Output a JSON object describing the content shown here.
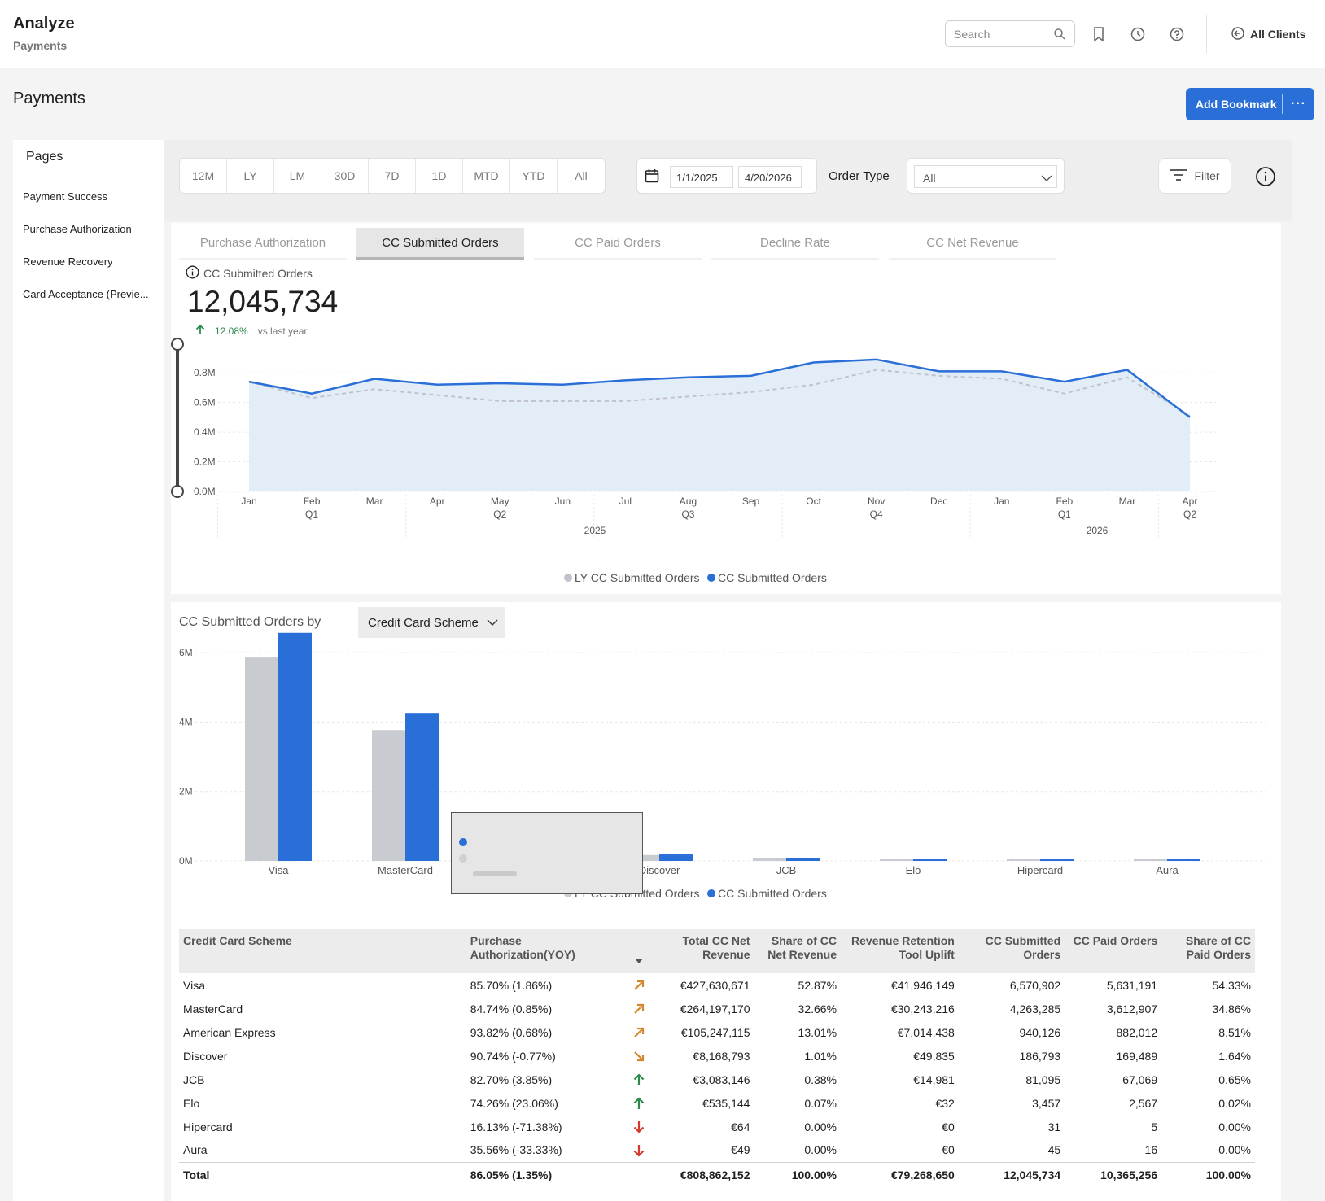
{
  "header": {
    "app_title": "Analyze",
    "app_subtitle": "Payments",
    "search_placeholder": "Search",
    "all_clients_label": "All Clients",
    "icons": [
      "search-icon",
      "bookmark-icon",
      "history-icon",
      "help-icon",
      "client-switch-icon"
    ]
  },
  "page": {
    "title": "Payments",
    "add_bookmark_label": "Add Bookmark",
    "more_label": "···"
  },
  "sidebar": {
    "heading": "Pages",
    "items": [
      {
        "label": "Payment Success"
      },
      {
        "label": "Purchase Authorization"
      },
      {
        "label": "Revenue Recovery"
      },
      {
        "label": "Card Acceptance (Previe..."
      }
    ]
  },
  "toolbar": {
    "periods": [
      "12M",
      "LY",
      "LM",
      "30D",
      "7D",
      "1D",
      "MTD",
      "YTD",
      "All"
    ],
    "start_date": "1/1/2025",
    "end_date": "4/20/2026",
    "order_type_label": "Order Type",
    "order_type_value": "All",
    "filter_label": "Filter"
  },
  "tabs": [
    {
      "label": "Purchase Authorization",
      "active": false
    },
    {
      "label": "CC Submitted Orders",
      "active": true
    },
    {
      "label": "CC Paid Orders",
      "active": false
    },
    {
      "label": "Decline Rate",
      "active": false
    },
    {
      "label": "CC Net Revenue",
      "active": false
    }
  ],
  "kpi": {
    "label": "CC Submitted Orders",
    "value": "12,045,734",
    "change_pct": "12.08%",
    "change_label": "vs last year"
  },
  "breakdown": {
    "label": "CC Submitted Orders by",
    "dimension": "Credit Card Scheme"
  },
  "chart_data": [
    {
      "type": "area",
      "categories": [
        "Jan",
        "Feb",
        "Mar",
        "Apr",
        "May",
        "Jun",
        "Jul",
        "Aug",
        "Sep",
        "Oct",
        "Nov",
        "Dec",
        "Jan",
        "Feb",
        "Mar",
        "Apr"
      ],
      "quarter_labels": [
        "",
        "Q1",
        "",
        "",
        "Q2",
        "",
        "",
        "Q3",
        "",
        "",
        "Q4",
        "",
        "",
        "Q1",
        "",
        "Q2"
      ],
      "year_labels": [
        "2025",
        "2026"
      ],
      "series": [
        {
          "name": "LY CC Submitted Orders",
          "values": [
            0.74,
            0.63,
            0.69,
            0.65,
            0.61,
            0.61,
            0.61,
            0.64,
            0.67,
            0.72,
            0.82,
            0.78,
            0.76,
            0.66,
            0.77,
            0.51
          ],
          "color": "#c0c4ca"
        },
        {
          "name": "CC Submitted Orders",
          "values": [
            0.74,
            0.66,
            0.76,
            0.72,
            0.73,
            0.72,
            0.75,
            0.77,
            0.78,
            0.87,
            0.89,
            0.81,
            0.81,
            0.74,
            0.82,
            0.5
          ],
          "color": "#2a6fd8"
        }
      ],
      "y_ticks": [
        "0.0M",
        "0.2M",
        "0.4M",
        "0.6M",
        "0.8M"
      ],
      "ylim": [
        0,
        0.9
      ],
      "legend": "bottom"
    },
    {
      "type": "bar",
      "categories": [
        "Visa",
        "MasterCard",
        "American Express",
        "Discover",
        "JCB",
        "Elo",
        "Hipercard",
        "Aura"
      ],
      "category_labels_shown": [
        "Visa",
        "MasterCard",
        "",
        "Discover",
        "JCB",
        "Elo",
        "Hipercard",
        "Aura"
      ],
      "series": [
        {
          "name": "LY CC Submitted Orders",
          "values": [
            5.86,
            3.77,
            0.84,
            0.17,
            0.07,
            0.003,
            0.0001,
            0.0001
          ],
          "color": "#c8cbd0"
        },
        {
          "name": "CC Submitted Orders",
          "values": [
            6.570902,
            4.263285,
            0.940126,
            0.186793,
            0.081095,
            0.003457,
            3.1e-05,
            4.5e-05
          ],
          "color": "#2a6fd8"
        }
      ],
      "y_ticks": [
        "0M",
        "2M",
        "4M",
        "6M"
      ],
      "ylim": [
        0,
        6.8
      ],
      "legend": "bottom"
    }
  ],
  "table": {
    "columns": [
      "Credit Card Scheme",
      "Purchase Authorization(YOY)",
      "",
      "Total CC Net Revenue",
      "Share of CC Net Revenue",
      "Revenue Retention Tool Uplift",
      "CC Submitted Orders",
      "CC Paid Orders",
      "Share of CC Paid Orders"
    ],
    "rows": [
      {
        "scheme": "Visa",
        "auth": "85.70% (1.86%)",
        "trend": "up-right",
        "net_revenue": "€427,630,671",
        "share_revenue": "52.87%",
        "uplift": "€41,946,149",
        "submitted": "6,570,902",
        "paid": "5,631,191",
        "share_paid": "54.33%"
      },
      {
        "scheme": "MasterCard",
        "auth": "84.74% (0.85%)",
        "trend": "up-right",
        "net_revenue": "€264,197,170",
        "share_revenue": "32.66%",
        "uplift": "€30,243,216",
        "submitted": "4,263,285",
        "paid": "3,612,907",
        "share_paid": "34.86%"
      },
      {
        "scheme": "American Express",
        "auth": "93.82% (0.68%)",
        "trend": "up-right",
        "net_revenue": "€105,247,115",
        "share_revenue": "13.01%",
        "uplift": "€7,014,438",
        "submitted": "940,126",
        "paid": "882,012",
        "share_paid": "8.51%"
      },
      {
        "scheme": "Discover",
        "auth": "90.74% (-0.77%)",
        "trend": "down-right",
        "net_revenue": "€8,168,793",
        "share_revenue": "1.01%",
        "uplift": "€49,835",
        "submitted": "186,793",
        "paid": "169,489",
        "share_paid": "1.64%"
      },
      {
        "scheme": "JCB",
        "auth": "82.70% (3.85%)",
        "trend": "up",
        "net_revenue": "€3,083,146",
        "share_revenue": "0.38%",
        "uplift": "€14,981",
        "submitted": "81,095",
        "paid": "67,069",
        "share_paid": "0.65%"
      },
      {
        "scheme": "Elo",
        "auth": "74.26% (23.06%)",
        "trend": "up",
        "net_revenue": "€535,144",
        "share_revenue": "0.07%",
        "uplift": "€32",
        "submitted": "3,457",
        "paid": "2,567",
        "share_paid": "0.02%"
      },
      {
        "scheme": "Hipercard",
        "auth": "16.13% (-71.38%)",
        "trend": "down",
        "net_revenue": "€64",
        "share_revenue": "0.00%",
        "uplift": "€0",
        "submitted": "31",
        "paid": "5",
        "share_paid": "0.00%"
      },
      {
        "scheme": "Aura",
        "auth": "35.56% (-33.33%)",
        "trend": "down",
        "net_revenue": "€49",
        "share_revenue": "0.00%",
        "uplift": "€0",
        "submitted": "45",
        "paid": "16",
        "share_paid": "0.00%"
      }
    ],
    "total": {
      "scheme": "Total",
      "auth": "86.05% (1.35%)",
      "net_revenue": "€808,862,152",
      "share_revenue": "100.00%",
      "uplift": "€79,268,650",
      "submitted": "12,045,734",
      "paid": "10,365,256",
      "share_paid": "100.00%"
    },
    "trend_colors": {
      "up-right": "#d4872c",
      "down-right": "#d4872c",
      "up": "#2b8a4b",
      "down": "#d33a2c"
    }
  }
}
